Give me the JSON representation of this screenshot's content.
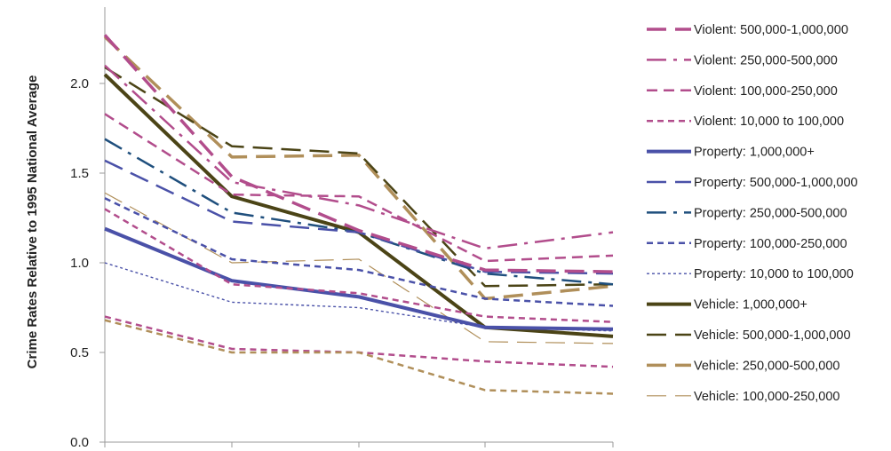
{
  "chart_data": {
    "type": "line",
    "title": "",
    "xlabel": "",
    "ylabel": "Crime Rates Relative to 1995 National Average",
    "ylim": [
      0,
      2.4
    ],
    "yticks": [
      "0.0",
      "0.5",
      "1.0",
      "1.5",
      "2.0"
    ],
    "x": [
      1,
      2,
      3,
      4,
      5
    ],
    "grid": false,
    "legend_placement": "right",
    "series": [
      {
        "name": "Violent: 500,000-1,000,000",
        "color": "#b24d8c",
        "dash": "longdash-thick",
        "values": [
          2.27,
          1.48,
          1.18,
          0.96,
          0.95
        ]
      },
      {
        "name": "Violent: 250,000-500,000",
        "color": "#b24d8c",
        "dash": "dashdot",
        "values": [
          2.1,
          1.45,
          1.32,
          1.08,
          1.17
        ]
      },
      {
        "name": "Violent: 100,000-250,000",
        "color": "#b24d8c",
        "dash": "dash",
        "values": [
          1.83,
          1.38,
          1.37,
          1.01,
          1.04
        ]
      },
      {
        "name": "Violent: 10,000 to 100,000",
        "color": "#b24d8c",
        "dash": "shortdash",
        "values": [
          1.3,
          0.88,
          0.83,
          0.7,
          0.67
        ]
      },
      {
        "name": "Property: 1,000,000+",
        "color": "#4a51a8",
        "dash": "solid-thick",
        "values": [
          1.19,
          0.9,
          0.81,
          0.64,
          0.63
        ]
      },
      {
        "name": "Property: 500,000-1,000,000",
        "color": "#4a51a8",
        "dash": "longdash",
        "values": [
          1.57,
          1.23,
          1.17,
          0.95,
          0.94
        ]
      },
      {
        "name": "Property: 250,000-500,000",
        "color": "#1f4f7d",
        "dash": "dashdot",
        "values": [
          1.69,
          1.28,
          1.17,
          0.94,
          0.88
        ]
      },
      {
        "name": "Property: 100,000-250,000",
        "color": "#4a51a8",
        "dash": "shortdash",
        "values": [
          1.36,
          1.02,
          0.96,
          0.8,
          0.76
        ]
      },
      {
        "name": "Property: 10,000 to 100,000",
        "color": "#4a51a8",
        "dash": "dot",
        "values": [
          1.0,
          0.78,
          0.75,
          0.64,
          0.62
        ]
      },
      {
        "name": "Vehicle: 1,000,000+",
        "color": "#4b4416",
        "dash": "solid-thick",
        "values": [
          2.05,
          1.37,
          1.17,
          0.64,
          0.59
        ]
      },
      {
        "name": "Vehicle: 500,000-1,000,000",
        "color": "#4b4416",
        "dash": "longdash",
        "values": [
          2.09,
          1.65,
          1.61,
          0.87,
          0.88
        ]
      },
      {
        "name": "Vehicle: 250,000-500,000",
        "color": "#b08f5a",
        "dash": "longdash-thick",
        "values": [
          2.26,
          1.59,
          1.6,
          0.8,
          0.87
        ]
      },
      {
        "name": "Vehicle: 100,000-250,000",
        "color": "#b08f5a",
        "dash": "longdash-thin",
        "values": [
          1.39,
          1.0,
          1.02,
          0.56,
          0.55
        ]
      },
      {
        "name": "",
        "color": "#b08f5a",
        "dash": "shortdash",
        "values": [
          0.68,
          0.5,
          0.5,
          0.29,
          0.27
        ]
      },
      {
        "name": "",
        "color": "#b24d8c",
        "dash": "shortdash",
        "values": [
          0.7,
          0.52,
          0.5,
          0.45,
          0.42
        ]
      }
    ]
  }
}
